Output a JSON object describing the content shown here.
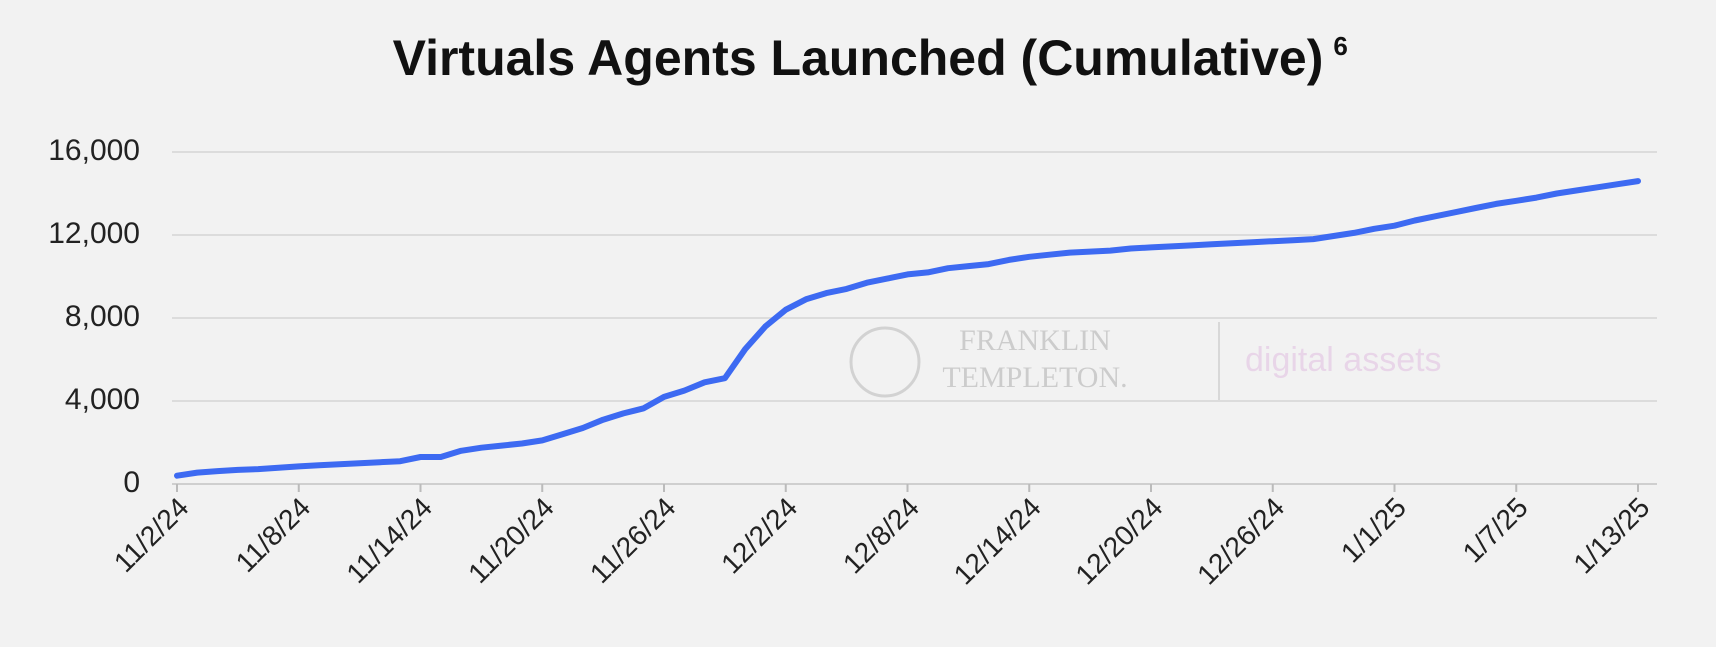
{
  "chart_data": {
    "type": "line",
    "title": "Virtuals Agents Launched (Cumulative)",
    "title_note": "6",
    "watermark": {
      "brand_line1": "FRANKLIN",
      "brand_line2": "TEMPLETON.",
      "tagline": "digital assets"
    },
    "categories": [
      "11/2/24",
      null,
      null,
      null,
      null,
      null,
      "11/8/24",
      null,
      null,
      null,
      null,
      null,
      "11/14/24",
      null,
      null,
      null,
      null,
      null,
      "11/20/24",
      null,
      null,
      null,
      null,
      null,
      "11/26/24",
      null,
      null,
      null,
      null,
      null,
      "12/2/24",
      null,
      null,
      null,
      null,
      null,
      "12/8/24",
      null,
      null,
      null,
      null,
      null,
      "12/14/24",
      null,
      null,
      null,
      null,
      null,
      "12/20/24",
      null,
      null,
      null,
      null,
      null,
      "12/26/24",
      null,
      null,
      null,
      null,
      null,
      "1/1/25",
      null,
      null,
      null,
      null,
      null,
      "1/7/25",
      null,
      null,
      null,
      null,
      null,
      "1/13/25"
    ],
    "series": [
      {
        "color": "#3d6af2",
        "values": [
          400,
          550,
          620,
          680,
          720,
          780,
          850,
          900,
          950,
          1000,
          1050,
          1100,
          1300,
          1300,
          1600,
          1750,
          1850,
          1950,
          2100,
          2400,
          2700,
          3100,
          3400,
          3650,
          4200,
          4500,
          4900,
          5100,
          6500,
          7600,
          8400,
          8900,
          9200,
          9400,
          9700,
          9900,
          10100,
          10200,
          10400,
          10500,
          10600,
          10800,
          10950,
          11050,
          11150,
          11200,
          11250,
          11350,
          11400,
          11450,
          11500,
          11550,
          11600,
          11650,
          11700,
          11750,
          11800,
          11950,
          12100,
          12300,
          12450,
          12700,
          12900,
          13100,
          13300,
          13500,
          13650,
          13800,
          14000,
          14150,
          14300,
          14450,
          14600
        ]
      }
    ],
    "ylim": [
      0,
      16000
    ],
    "yticks": [
      0,
      {
        "value": 4000,
        "label": "4,000"
      },
      {
        "value": 8000,
        "label": "8,000"
      },
      {
        "value": 12000,
        "label": "12,000"
      },
      {
        "value": 16000,
        "label": "16,000"
      }
    ],
    "grid": true
  }
}
